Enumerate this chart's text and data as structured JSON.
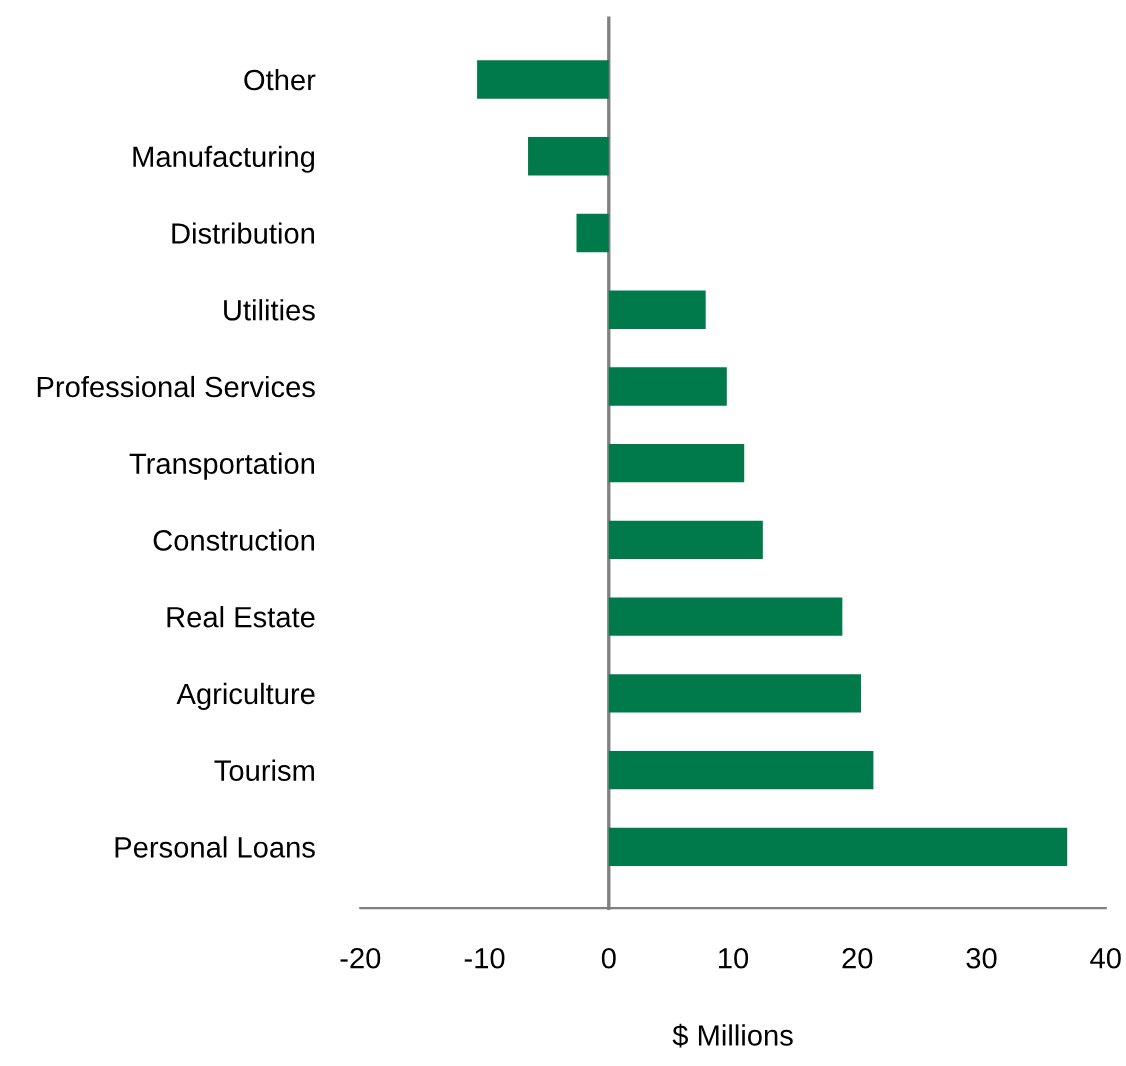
{
  "chart_data": {
    "type": "bar",
    "orientation": "horizontal",
    "xlabel": "$ Millions",
    "categories": [
      "Other",
      "Manufacturing",
      "Distribution",
      "Utilities",
      "Professional Services",
      "Transportation",
      "Construction",
      "Real Estate",
      "Agriculture",
      "Tourism",
      "Personal Loans"
    ],
    "values": [
      -10.6,
      -6.5,
      -2.6,
      7.8,
      9.5,
      10.9,
      12.4,
      18.8,
      20.3,
      21.3,
      36.9
    ],
    "color": "#007a4a",
    "xlim": [
      -20,
      40
    ],
    "xticks": [
      -20,
      -10,
      0,
      10,
      20,
      30,
      40
    ],
    "legend": false
  }
}
